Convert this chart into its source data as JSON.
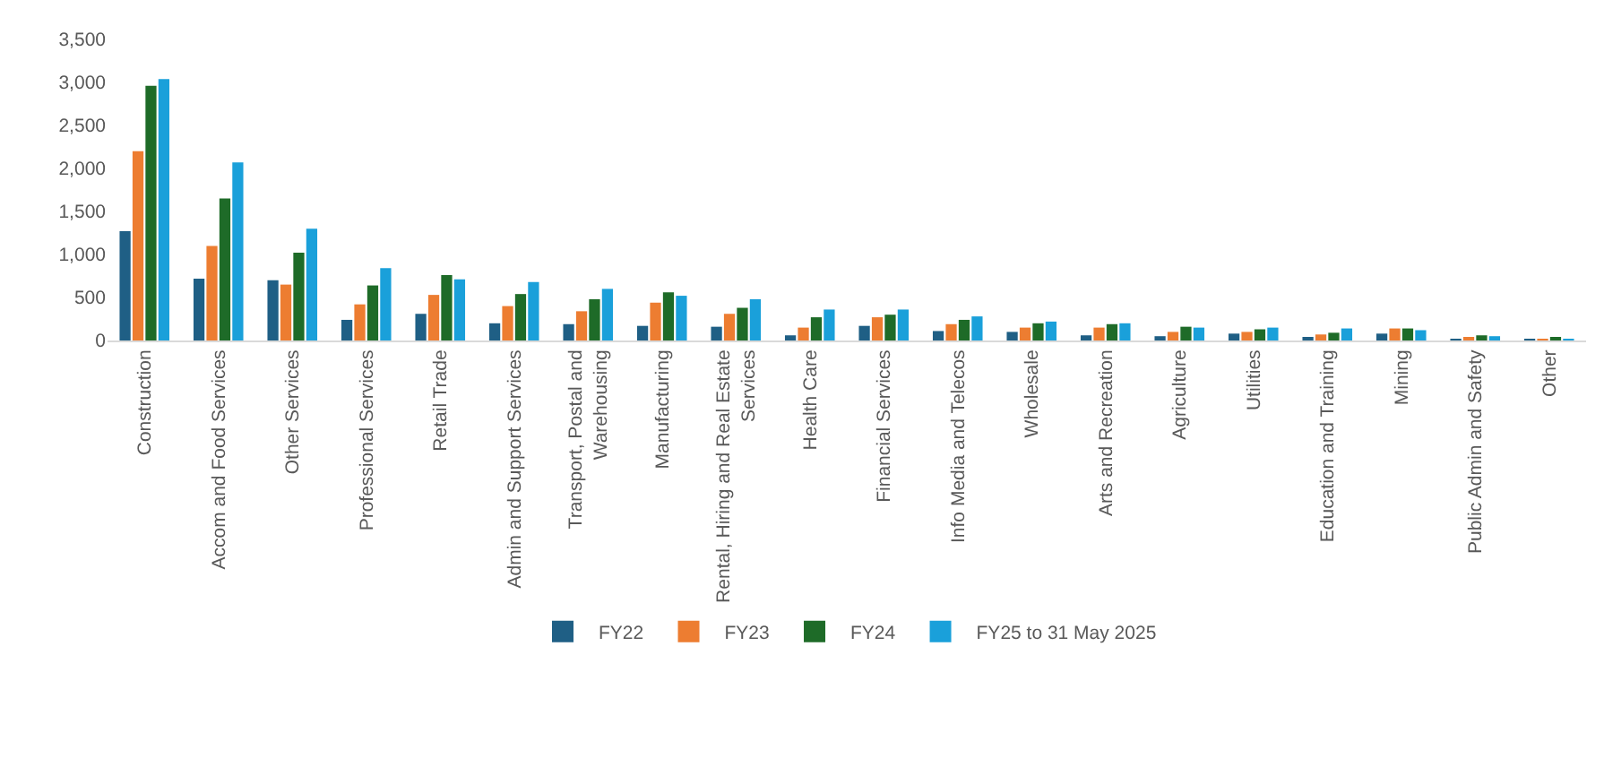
{
  "chart_data": {
    "type": "bar",
    "categories": [
      "Construction",
      "Accom and Food Services",
      "Other Services",
      "Professional Services",
      "Retail Trade",
      "Admin and Support Services",
      "Transport, Postal and\nWarehousing",
      "Manufacturing",
      "Rental, Hiring and Real Estate\nServices",
      "Health Care",
      "Financial Services",
      "Info Media and Telecos",
      "Wholesale",
      "Arts and Recreation",
      "Agriculture",
      "Utilities",
      "Education and Training",
      "Mining",
      "Public Admin and Safety",
      "Other"
    ],
    "series": [
      {
        "name": "FY22",
        "color": "#1f5f85",
        "values": [
          1270,
          720,
          700,
          240,
          310,
          200,
          190,
          170,
          160,
          60,
          170,
          110,
          100,
          60,
          50,
          80,
          40,
          80,
          20,
          10
        ]
      },
      {
        "name": "FY23",
        "color": "#ed7d31",
        "values": [
          2200,
          1100,
          650,
          420,
          530,
          400,
          340,
          440,
          310,
          150,
          270,
          190,
          150,
          150,
          100,
          100,
          70,
          140,
          40,
          10
        ]
      },
      {
        "name": "FY24",
        "color": "#1e6b28",
        "values": [
          2960,
          1650,
          1020,
          640,
          760,
          540,
          480,
          560,
          380,
          270,
          300,
          240,
          200,
          190,
          160,
          130,
          90,
          140,
          60,
          30
        ]
      },
      {
        "name": "FY25 to 31 May 2025",
        "color": "#1aa0da",
        "values": [
          3040,
          2070,
          1300,
          840,
          710,
          680,
          600,
          520,
          480,
          360,
          360,
          280,
          220,
          200,
          150,
          150,
          140,
          120,
          50,
          20
        ]
      }
    ],
    "ylim": [
      0,
      3500
    ],
    "yticks": [
      {
        "value": 0,
        "label": "0"
      },
      {
        "value": 500,
        "label": "500"
      },
      {
        "value": 1000,
        "label": "1,000"
      },
      {
        "value": 1500,
        "label": "1,500"
      },
      {
        "value": 2000,
        "label": "2,000"
      },
      {
        "value": 2500,
        "label": "2,500"
      },
      {
        "value": 3000,
        "label": "3,000"
      },
      {
        "value": 3500,
        "label": "3,500"
      }
    ],
    "grid": false,
    "legend": "bottom"
  }
}
